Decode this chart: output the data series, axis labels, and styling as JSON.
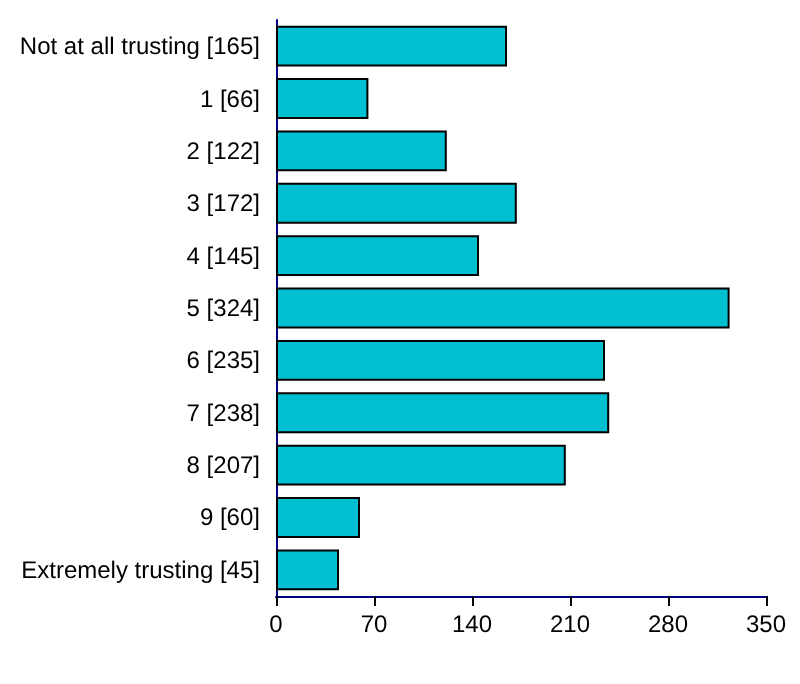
{
  "chart_data": {
    "type": "bar",
    "orientation": "horizontal",
    "categories": [
      "Not at all trusting [165]",
      "1 [66]",
      "2 [122]",
      "3 [172]",
      "4 [145]",
      "5 [324]",
      "6 [235]",
      "7 [238]",
      "8 [207]",
      "9 [60]",
      "Extremely trusting [45]"
    ],
    "values": [
      165,
      66,
      122,
      172,
      145,
      324,
      235,
      238,
      207,
      60,
      45
    ],
    "color": "#00bfd0",
    "xlim": [
      0,
      350
    ],
    "xticks": [
      0,
      70,
      140,
      210,
      280,
      350
    ],
    "grid": false
  }
}
